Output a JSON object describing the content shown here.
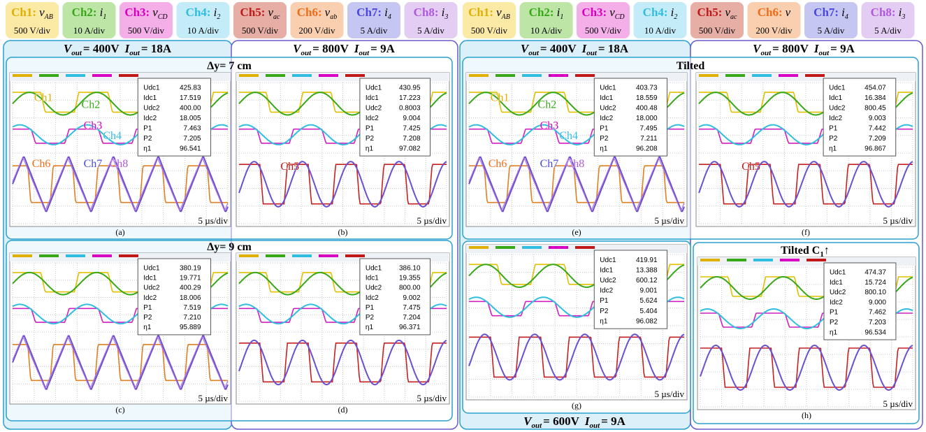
{
  "legend": [
    [
      {
        "channel": "Ch1:",
        "symbol": "v",
        "sub": "AB",
        "scale": "500 V/div",
        "color": "#e0b000",
        "bg": "#fbe9a6"
      },
      {
        "channel": "Ch2:",
        "symbol": "i",
        "sub": "1",
        "scale": "10 A/div",
        "color": "#38a818",
        "bg": "#bde6a6"
      },
      {
        "channel": "Ch3:",
        "symbol": "v",
        "sub": "CD",
        "scale": "500 V/div",
        "color": "#d800c0",
        "bg": "#f4aee8"
      },
      {
        "channel": "Ch4:",
        "symbol": "i",
        "sub": "2",
        "scale": "10 A/div",
        "color": "#30bde0",
        "bg": "#c4ecf8"
      },
      {
        "channel": "Ch5:",
        "symbol": "v",
        "sub": "ac",
        "scale": "500 V/div",
        "color": "#c01818",
        "bg": "#e6aea4"
      },
      {
        "channel": "Ch6:",
        "symbol": "v",
        "sub": "ab",
        "scale": "200 V/div",
        "color": "#f06c18",
        "bg": "#f9cfb0"
      },
      {
        "channel": "Ch7:",
        "symbol": "i",
        "sub": "4",
        "scale": "5 A/div",
        "color": "#4848e0",
        "bg": "#c6c6f2"
      },
      {
        "channel": "Ch8:",
        "symbol": "i",
        "sub": "3",
        "scale": "5 A/div",
        "color": "#b058e0",
        "bg": "#e3cdf3"
      }
    ],
    [
      {
        "channel": "Ch1:",
        "symbol": "v",
        "sub": "AB",
        "scale": "500 V/div",
        "color": "#e0b000",
        "bg": "#fbe9a6"
      },
      {
        "channel": "Ch2:",
        "symbol": "i",
        "sub": "1",
        "scale": "10 A/div",
        "color": "#38a818",
        "bg": "#bde6a6"
      },
      {
        "channel": "Ch3:",
        "symbol": "v",
        "sub": "CD",
        "scale": "500 V/div",
        "color": "#d800c0",
        "bg": "#f4aee8"
      },
      {
        "channel": "Ch4:",
        "symbol": "i",
        "sub": "2",
        "scale": "10 A/div",
        "color": "#30bde0",
        "bg": "#c4ecf8"
      },
      {
        "channel": "Ch5:",
        "symbol": "v",
        "sub": "ac",
        "scale": "500 V/div",
        "color": "#c01818",
        "bg": "#e6aea4"
      },
      {
        "channel": "Ch6:",
        "symbol": "v",
        "scale": "200 V/div",
        "color": "#f06c18",
        "bg": "#f9cfb0"
      },
      {
        "channel": "Ch7:",
        "symbol": "i",
        "sub": "4",
        "scale": "5 A/div",
        "color": "#4848e0",
        "bg": "#c6c6f2"
      },
      {
        "channel": "Ch8:",
        "symbol": "i",
        "sub": "3",
        "scale": "5 A/div",
        "color": "#b058e0",
        "bg": "#e3cdf3"
      }
    ]
  ],
  "headings": [
    {
      "v": "V",
      "v_sub": "out",
      "v_val": "= 400V",
      "i": "I",
      "i_sub": "out",
      "i_val": "= 18A"
    },
    {
      "v": "V",
      "v_sub": "out",
      "v_val": "= 800V",
      "i": "I",
      "i_sub": "out",
      "i_val": "= 9A"
    },
    {
      "v": "V",
      "v_sub": "out",
      "v_val": "= 400V",
      "i": "I",
      "i_sub": "out",
      "i_val": "= 18A"
    },
    {
      "v": "V",
      "v_sub": "out",
      "v_val": "= 800V",
      "i": "I",
      "i_sub": "out",
      "i_val": "= 9A"
    },
    {
      "v": "V",
      "v_sub": "out",
      "v_val": "= 600V",
      "i": "I",
      "i_sub": "out",
      "i_val": "= 9A"
    }
  ],
  "subtitles": [
    {
      "text": "Δy= 7 cm"
    },
    {
      "text": "Δy= 9 cm"
    },
    {
      "text": "Tilted"
    },
    {
      "text": "Tilted C",
      "sub": "1",
      "suffix": "↑"
    }
  ],
  "measure_labels": [
    "Udc1",
    "Idc1",
    "Udc2",
    "Idc2",
    "P1",
    "P2",
    "η1"
  ],
  "time_scale": "5 µs/div",
  "panels": [
    {
      "label": "(a)",
      "values": [
        "425.83",
        "17.519",
        "400.00",
        "18.005",
        "7.463",
        "7.205",
        "96.541"
      ],
      "annotations": [
        {
          "text": "Ch1",
          "color": "#e0b000"
        },
        {
          "text": "Ch2",
          "color": "#38a818"
        },
        {
          "text": "Ch3",
          "color": "#d800c0"
        },
        {
          "text": "Ch4",
          "color": "#30bde0"
        },
        {
          "text": "Ch6",
          "color": "#f06c18"
        },
        {
          "text": "Ch7",
          "color": "#4848e0"
        },
        {
          "text": "Ch8",
          "color": "#b058e0"
        }
      ]
    },
    {
      "label": "(b)",
      "values": [
        "430.95",
        "17.223",
        "0.8003",
        "9.004",
        "7.425",
        "7.208",
        "97.082"
      ],
      "annotations": [
        {
          "text": "Ch5",
          "color": "#c01818"
        }
      ]
    },
    {
      "label": "(c)",
      "values": [
        "380.19",
        "19.771",
        "400.29",
        "18.006",
        "7.519",
        "7.210",
        "95.889"
      ],
      "annotations": []
    },
    {
      "label": "(d)",
      "values": [
        "386.10",
        "19.355",
        "800.00",
        "9.002",
        "7.475",
        "7.204",
        "96.371"
      ],
      "annotations": []
    },
    {
      "label": "(e)",
      "values": [
        "403.73",
        "18.559",
        "400.48",
        "18.000",
        "7.495",
        "7.211",
        "96.208"
      ],
      "annotations": [
        {
          "text": "Ch1",
          "color": "#e0b000"
        },
        {
          "text": "Ch2",
          "color": "#38a818"
        },
        {
          "text": "Ch3",
          "color": "#d800c0"
        },
        {
          "text": "Ch4",
          "color": "#30bde0"
        },
        {
          "text": "Ch6",
          "color": "#f06c18"
        },
        {
          "text": "Ch7",
          "color": "#4848e0"
        },
        {
          "text": "Ch8",
          "color": "#b058e0"
        }
      ]
    },
    {
      "label": "(f)",
      "values": [
        "454.07",
        "16.384",
        "800.45",
        "9.003",
        "7.442",
        "7.209",
        "96.867"
      ],
      "annotations": [
        {
          "text": "Ch5",
          "color": "#c01818"
        }
      ]
    },
    {
      "label": "(g)",
      "values": [
        "419.91",
        "13.388",
        "600.12",
        "9.001",
        "5.624",
        "5.404",
        "96.082"
      ],
      "annotations": []
    },
    {
      "label": "(h)",
      "values": [
        "474.37",
        "15.724",
        "800.10",
        "9.000",
        "7.462",
        "7.203",
        "96.534"
      ],
      "annotations": []
    }
  ]
}
